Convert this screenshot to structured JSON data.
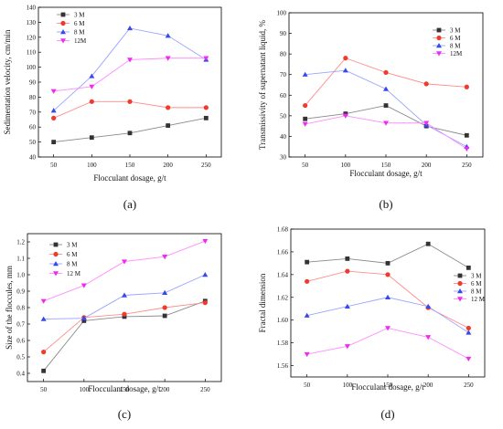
{
  "colors": {
    "3 M": "#333333",
    "6 M": "#f03a2e",
    "8 M": "#3848f0",
    "12 M": "#ee2bee",
    "3M": "#333333",
    "6M": "#f03a2e",
    "8M": "#3848f0",
    "12M": "#ee2bee",
    "line_tint": {
      "3 M": "#8a8a8a",
      "6 M": "#ff8e8e",
      "8 M": "#9aa4ff",
      "12 M": "#ff8cff",
      "3M": "#8a8a8a",
      "6M": "#ff8e8e",
      "8M": "#9aa4ff",
      "12M": "#ff8cff"
    }
  },
  "chart_data": [
    {
      "panel_label": "(a)",
      "type": "line",
      "xlabel": "Flocculant dosage, g/t",
      "ylabel": "Sedimentation velocity, cm/min",
      "x": [
        50,
        100,
        150,
        200,
        250
      ],
      "xlim": [
        30,
        270
      ],
      "ylim": [
        40,
        140
      ],
      "yticks": [
        40,
        50,
        60,
        70,
        80,
        90,
        100,
        110,
        120,
        130,
        140
      ],
      "legend_position": "top-left",
      "series": [
        {
          "name": "3 M",
          "marker": "square",
          "values": [
            50,
            53,
            56,
            61,
            66
          ]
        },
        {
          "name": "6 M",
          "marker": "circle",
          "values": [
            66,
            77,
            77,
            73,
            73
          ]
        },
        {
          "name": "8 M",
          "marker": "triangle-up",
          "values": [
            71,
            94,
            126,
            121,
            105
          ]
        },
        {
          "name": "12M",
          "marker": "triangle-down",
          "values": [
            84,
            87,
            105,
            106,
            106
          ]
        }
      ]
    },
    {
      "panel_label": "(b)",
      "type": "line",
      "xlabel": "Flocculant dosage, g/t",
      "ylabel": "Transmissivity of supernatant liquid, %",
      "x": [
        50,
        100,
        150,
        200,
        250
      ],
      "xlim": [
        30,
        270
      ],
      "ylim": [
        30,
        100
      ],
      "yticks": [
        30,
        40,
        50,
        60,
        70,
        80,
        90,
        100
      ],
      "legend_position": "top-right",
      "series": [
        {
          "name": "3 M",
          "marker": "square",
          "values": [
            48.5,
            51,
            55,
            45,
            40.5
          ]
        },
        {
          "name": "6 M",
          "marker": "circle",
          "values": [
            55,
            78,
            71,
            65.5,
            64
          ]
        },
        {
          "name": "8 M",
          "marker": "triangle-up",
          "values": [
            70,
            72,
            63,
            45.5,
            35
          ]
        },
        {
          "name": "12M",
          "marker": "triangle-down",
          "values": [
            46,
            50,
            46.5,
            46.5,
            34
          ]
        }
      ]
    },
    {
      "panel_label": "(c)",
      "type": "line",
      "xlabel": "Flocculant dosage, g/t",
      "ylabel": "Size of the floccules, mm",
      "x": [
        50,
        100,
        150,
        200,
        250
      ],
      "xlim": [
        30,
        270
      ],
      "ylim": [
        0.35,
        1.25
      ],
      "yticks": [
        0.4,
        0.5,
        0.6,
        0.7,
        0.8,
        0.9,
        1.0,
        1.1,
        1.2
      ],
      "ytick_labels": [
        "0.4",
        "0.5",
        "0.6",
        "0.7",
        "0.8",
        "0.9",
        "1.0",
        "1.1",
        "1.2"
      ],
      "legend_position": "top-left",
      "series": [
        {
          "name": "3 M",
          "marker": "square",
          "values": [
            0.415,
            0.72,
            0.745,
            0.75,
            0.84
          ]
        },
        {
          "name": "6 M",
          "marker": "circle",
          "values": [
            0.53,
            0.74,
            0.76,
            0.8,
            0.83
          ]
        },
        {
          "name": "8 M",
          "marker": "triangle-up",
          "values": [
            0.73,
            0.735,
            0.875,
            0.89,
            1.0
          ]
        },
        {
          "name": "12 M",
          "marker": "triangle-down",
          "values": [
            0.84,
            0.935,
            1.08,
            1.11,
            1.205
          ]
        }
      ]
    },
    {
      "panel_label": "(d)",
      "type": "line",
      "xlabel": "Flocculant dosage, g/t",
      "ylabel": "Fractal dimension",
      "x": [
        50,
        100,
        150,
        200,
        250
      ],
      "xlim": [
        30,
        270
      ],
      "ylim": [
        1.55,
        1.68
      ],
      "yticks": [
        1.56,
        1.58,
        1.6,
        1.62,
        1.64,
        1.66,
        1.68
      ],
      "ytick_labels": [
        "1.56",
        "1.58",
        "1.60",
        "1.62",
        "1.64",
        "1.66",
        "1.68"
      ],
      "legend_position": "right",
      "series": [
        {
          "name": "3 M",
          "marker": "square",
          "values": [
            1.651,
            1.654,
            1.65,
            1.667,
            1.646
          ]
        },
        {
          "name": "6 M",
          "marker": "circle",
          "values": [
            1.634,
            1.643,
            1.64,
            1.611,
            1.593
          ]
        },
        {
          "name": "8 M",
          "marker": "triangle-up",
          "values": [
            1.604,
            1.612,
            1.62,
            1.612,
            1.589
          ]
        },
        {
          "name": "12 M",
          "marker": "triangle-down",
          "values": [
            1.57,
            1.577,
            1.593,
            1.585,
            1.566
          ]
        }
      ]
    }
  ]
}
